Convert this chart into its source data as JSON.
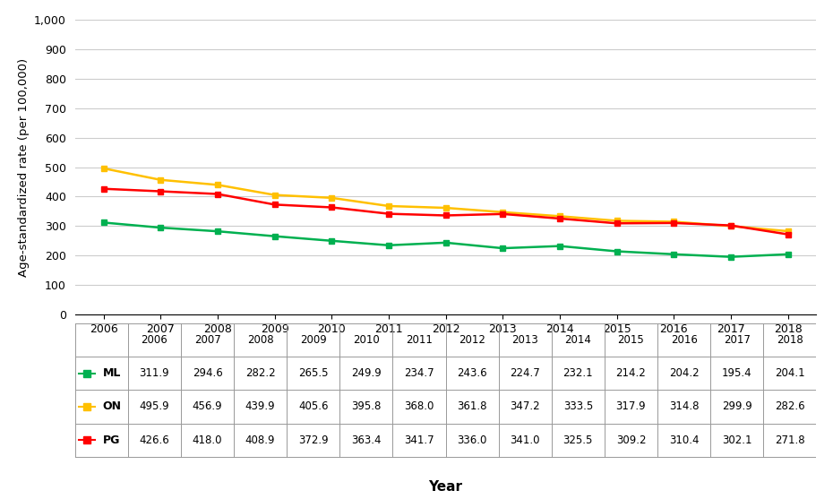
{
  "years": [
    2006,
    2007,
    2008,
    2009,
    2010,
    2011,
    2012,
    2013,
    2014,
    2015,
    2016,
    2017,
    2018
  ],
  "ML": [
    311.9,
    294.6,
    282.2,
    265.5,
    249.9,
    234.7,
    243.6,
    224.7,
    232.1,
    214.2,
    204.2,
    195.4,
    204.1
  ],
  "ON": [
    495.9,
    456.9,
    439.9,
    405.6,
    395.8,
    368.0,
    361.8,
    347.2,
    333.5,
    317.9,
    314.8,
    299.9,
    282.6
  ],
  "PG": [
    426.6,
    418.0,
    408.9,
    372.9,
    363.4,
    341.7,
    336.0,
    341.0,
    325.5,
    309.2,
    310.4,
    302.1,
    271.8
  ],
  "ML_color": "#00B050",
  "ON_color": "#FFC000",
  "PG_color": "#FF0000",
  "ylabel": "Age-standardized rate (per 100,000)",
  "xlabel": "Year",
  "ylim": [
    0,
    1000
  ],
  "yticks": [
    0,
    100,
    200,
    300,
    400,
    500,
    600,
    700,
    800,
    900,
    1000
  ],
  "background_color": "#FFFFFF",
  "grid_color": "#CCCCCC"
}
